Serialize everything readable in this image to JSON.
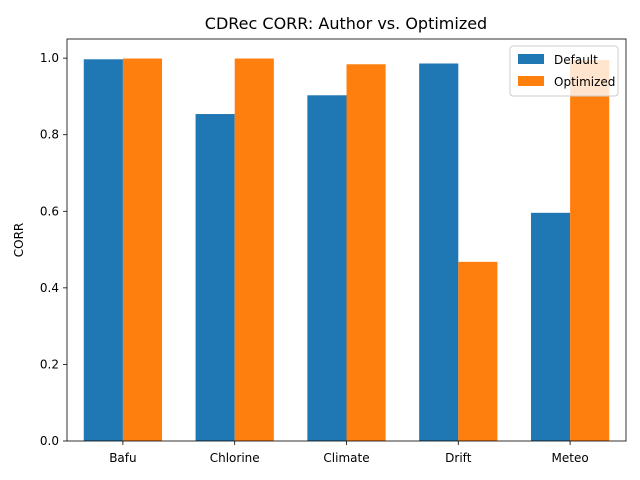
{
  "chart_data": {
    "type": "bar",
    "title": "CDRec CORR: Author vs. Optimized",
    "xlabel": "",
    "ylabel": "CORR",
    "categories": [
      "Bafu",
      "Chlorine",
      "Climate",
      "Drift",
      "Meteo"
    ],
    "series": [
      {
        "name": "Default",
        "color": "#1f77b4",
        "values": [
          0.997,
          0.854,
          0.903,
          0.986,
          0.596
        ]
      },
      {
        "name": "Optimized",
        "color": "#ff7f0e",
        "values": [
          0.999,
          0.999,
          0.984,
          0.468,
          0.995
        ]
      }
    ],
    "ylim": [
      0,
      1.05
    ],
    "yticks": [
      0.0,
      0.2,
      0.4,
      0.6,
      0.8,
      1.0
    ],
    "ytick_labels": [
      "0.0",
      "0.2",
      "0.4",
      "0.6",
      "0.8",
      "1.0"
    ],
    "grid": false,
    "legend_position": "top-right"
  }
}
